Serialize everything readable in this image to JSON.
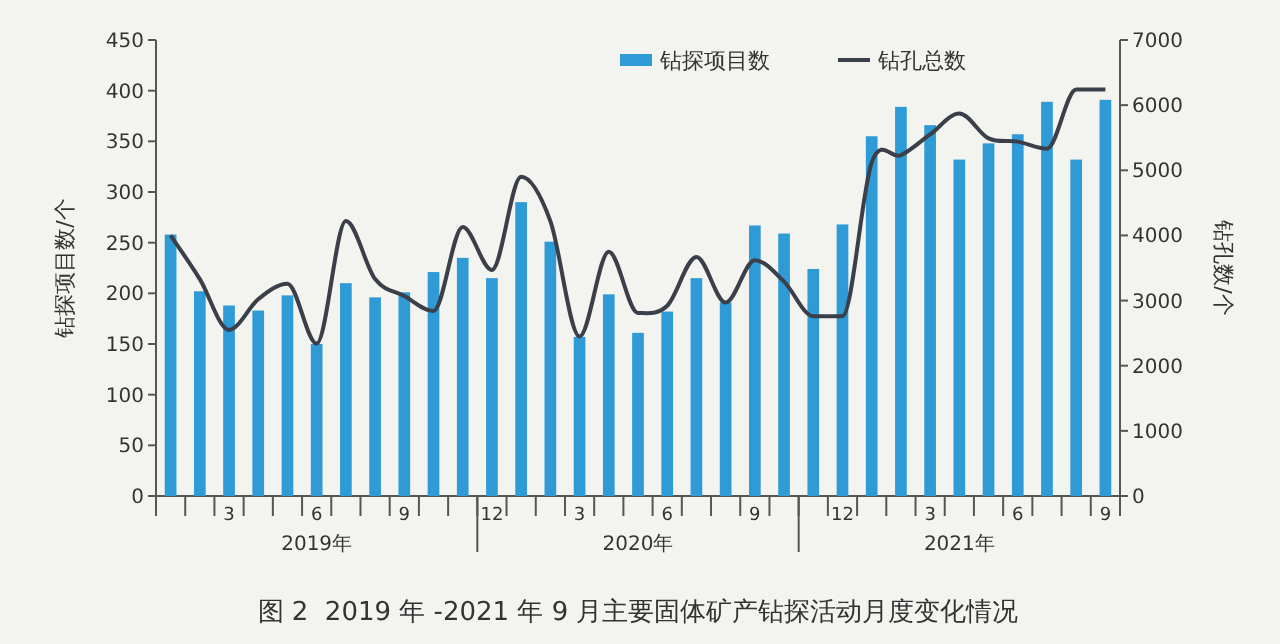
{
  "chart_data": {
    "type": "bar",
    "title": "图 2  2019 年 -2021 年 9 月主要固体矿产钻探活动月度变化情况",
    "categories": [
      null,
      null,
      "3",
      null,
      null,
      "6",
      null,
      null,
      "9",
      null,
      null,
      "12",
      null,
      null,
      "3",
      null,
      null,
      "6",
      null,
      null,
      "9",
      null,
      null,
      "12",
      null,
      null,
      "3",
      null,
      null,
      "6",
      null,
      null,
      "9"
    ],
    "series": [
      {
        "name": "钻探项目数",
        "color": "#2e9bd6",
        "values": [
          258,
          202,
          188,
          183,
          198,
          150,
          210,
          196,
          201,
          221,
          235,
          215,
          290,
          251,
          157,
          199,
          161,
          182,
          215,
          191,
          267,
          259,
          224,
          268,
          355,
          384,
          366,
          332,
          348,
          357,
          389,
          332,
          391
        ]
      },
      {
        "name": "钻孔总数",
        "type": "line",
        "axis": "y2",
        "color": "#3a3f4a",
        "values": [
          4000,
          3330,
          2550,
          3020,
          3260,
          2340,
          4220,
          3330,
          3070,
          2840,
          4130,
          3470,
          4900,
          4220,
          2450,
          3750,
          2810,
          2920,
          3670,
          2970,
          3620,
          3290,
          2760,
          2760,
          5120,
          5230,
          5550,
          5870,
          5490,
          5440,
          5330,
          6240,
          6240
        ]
      }
    ],
    "ylabel": "钻探项目数/个",
    "y2label": "钻孔数/个",
    "ylim": [
      0,
      450
    ],
    "yticks": [
      0,
      50,
      100,
      150,
      200,
      250,
      300,
      350,
      400,
      450
    ],
    "y2lim": [
      0,
      7000
    ],
    "y2ticks": [
      0,
      1000,
      2000,
      3000,
      4000,
      5000,
      6000,
      7000
    ],
    "annotations": [
      "2019年",
      "2020年",
      "2021年"
    ],
    "legend": "top right"
  }
}
